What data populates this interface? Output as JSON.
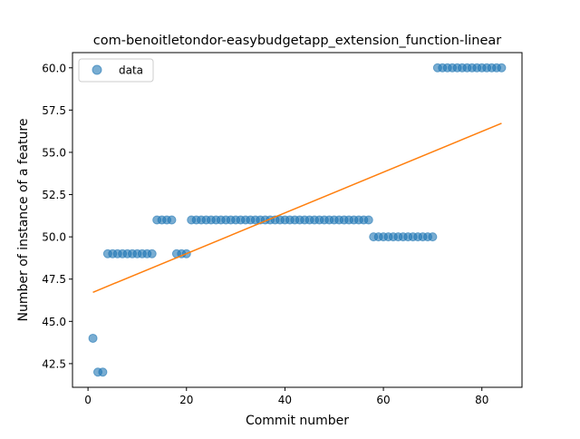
{
  "chart_data": {
    "type": "scatter",
    "title": "com-benoitletondor-easybudgetapp_extension_function-linear",
    "xlabel": "Commit number",
    "ylabel": "Number of instance of a feature",
    "xlim": [
      -3.15,
      88.15
    ],
    "ylim": [
      41.1,
      60.9
    ],
    "x_ticks": [
      0,
      20,
      40,
      60,
      80
    ],
    "x_tick_labels": [
      "0",
      "20",
      "40",
      "60",
      "80"
    ],
    "y_ticks": [
      42.5,
      45.0,
      47.5,
      50.0,
      52.5,
      55.0,
      57.5,
      60.0
    ],
    "y_tick_labels": [
      "42.5",
      "45.0",
      "47.5",
      "50.0",
      "52.5",
      "55.0",
      "57.5",
      "60.0"
    ],
    "grid": false,
    "legend": {
      "position": "top-left",
      "entries": [
        "data"
      ]
    },
    "series": [
      {
        "name": "data",
        "kind": "scatter",
        "color": "#1f77b4",
        "x": [
          1,
          2,
          3,
          4,
          5,
          6,
          7,
          8,
          9,
          10,
          11,
          12,
          13,
          14,
          15,
          16,
          17,
          18,
          19,
          20,
          21,
          22,
          23,
          24,
          25,
          26,
          27,
          28,
          29,
          30,
          31,
          32,
          33,
          34,
          35,
          36,
          37,
          38,
          39,
          40,
          41,
          42,
          43,
          44,
          45,
          46,
          47,
          48,
          49,
          50,
          51,
          52,
          53,
          54,
          55,
          56,
          57,
          58,
          59,
          60,
          61,
          62,
          63,
          64,
          65,
          66,
          67,
          68,
          69,
          70,
          71,
          72,
          73,
          74,
          75,
          76,
          77,
          78,
          79,
          80,
          81,
          82,
          83,
          84
        ],
        "y": [
          44,
          42,
          42,
          49,
          49,
          49,
          49,
          49,
          49,
          49,
          49,
          49,
          49,
          51,
          51,
          51,
          51,
          49,
          49,
          49,
          51,
          51,
          51,
          51,
          51,
          51,
          51,
          51,
          51,
          51,
          51,
          51,
          51,
          51,
          51,
          51,
          51,
          51,
          51,
          51,
          51,
          51,
          51,
          51,
          51,
          51,
          51,
          51,
          51,
          51,
          51,
          51,
          51,
          51,
          51,
          51,
          51,
          50,
          50,
          50,
          50,
          50,
          50,
          50,
          50,
          50,
          50,
          50,
          50,
          50,
          60,
          60,
          60,
          60,
          60,
          60,
          60,
          60,
          60,
          60,
          60,
          60,
          60,
          60
        ]
      },
      {
        "kind": "line",
        "color": "#ff7f0e",
        "x": [
          1,
          84
        ],
        "y": [
          46.72,
          56.72
        ]
      }
    ]
  }
}
